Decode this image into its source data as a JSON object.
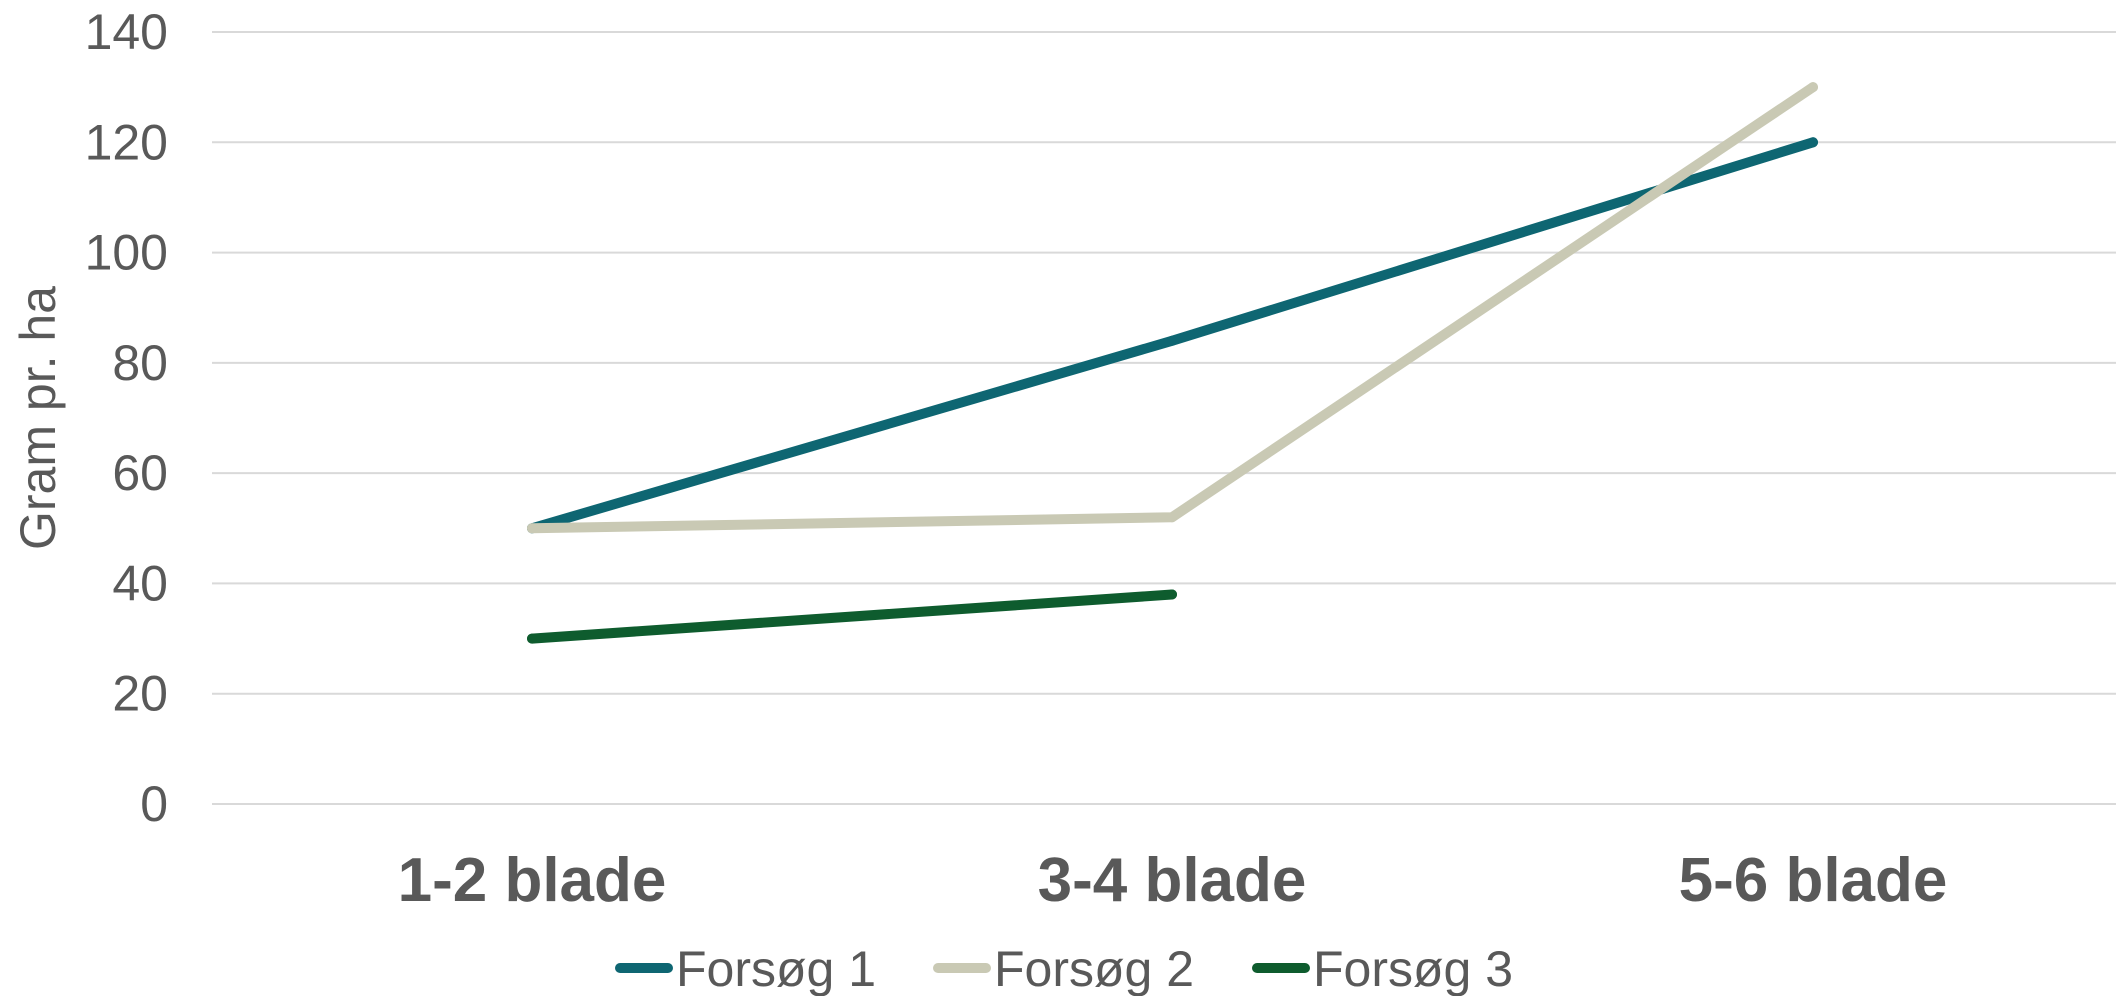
{
  "chart_data": {
    "type": "line",
    "title": "",
    "xlabel": "",
    "ylabel": "Gram pr. ha",
    "categories": [
      "1-2 blade",
      "3-4 blade",
      "5-6 blade"
    ],
    "ylim": [
      0,
      140
    ],
    "yticks": [
      0,
      20,
      40,
      60,
      80,
      100,
      120,
      140
    ],
    "grid": true,
    "legend_position": "bottom",
    "series": [
      {
        "name": "Forsøg 1",
        "color": "#0e6672",
        "values": [
          50,
          84,
          120
        ]
      },
      {
        "name": "Forsøg 2",
        "color": "#c9c9b4",
        "values": [
          50,
          52,
          130
        ]
      },
      {
        "name": "Forsøg 3",
        "color": "#0e5c2e",
        "values": [
          30,
          38,
          null
        ]
      }
    ]
  }
}
